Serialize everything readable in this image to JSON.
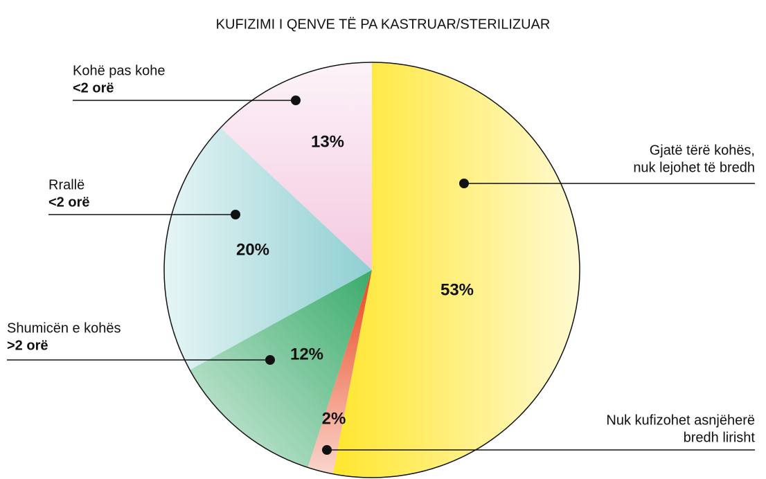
{
  "chart_data": {
    "type": "pie",
    "title": "KUFIZIMI I QENVE TË PA KASTRUAR/STERILIZUAR",
    "categories": [
      [
        "Gjatë tërë kohës,",
        "nuk lejohet të bredh"
      ],
      [
        "Nuk kufizohet asnjëherë",
        "bredh lirisht"
      ],
      [
        "Shumicën e kohës"
      ],
      [
        "Rrallë"
      ],
      [
        "Kohë pas kohe"
      ]
    ],
    "durations": [
      null,
      null,
      ">2 orë",
      "<2 orë",
      "<2 orë"
    ],
    "values": [
      53,
      2,
      12,
      20,
      13
    ],
    "value_labels": [
      "53%",
      "2%",
      "12%",
      "20%",
      "13%"
    ],
    "colors": [
      "#ffe62e",
      "#e8431a",
      "#3aab6b",
      "#8fcfd2",
      "#f4c9e0"
    ]
  }
}
